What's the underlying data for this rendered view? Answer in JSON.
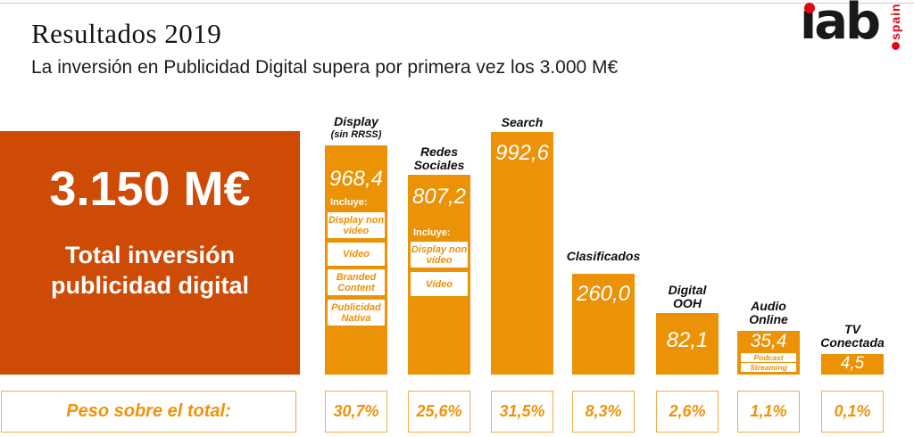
{
  "header": {
    "title": "Resultados 2019",
    "subtitle": "La inversión en Publicidad Digital supera por primera vez los 3.000 M€",
    "logo_text": "ıab",
    "logo_region": "spain"
  },
  "total_box": {
    "value": "3.150 M€",
    "label_line1": "Total inversión",
    "label_line2": "publicidad digital"
  },
  "bars": [
    {
      "label_lines": [
        "Display",
        "(sin RRSS)"
      ],
      "value_label": "968,4",
      "includes_title": "Incluye:",
      "includes": [
        "Display non vídeo",
        "Vídeo",
        "Branded Content",
        "Publicidad Nativa"
      ],
      "share": "30,7%"
    },
    {
      "label_lines": [
        "Redes",
        "Sociales"
      ],
      "value_label": "807,2",
      "includes_title": "Incluye:",
      "includes": [
        "Display non vídeo",
        "Vídeo"
      ],
      "share": "25,6%"
    },
    {
      "label_lines": [
        "Search"
      ],
      "value_label": "992,6",
      "share": "31,5%"
    },
    {
      "label_lines": [
        "Clasificados"
      ],
      "value_label": "260,0",
      "share": "8,3%"
    },
    {
      "label_lines": [
        "Digital",
        "OOH"
      ],
      "value_label": "82,1",
      "share": "2,6%"
    },
    {
      "label_lines": [
        "Audio",
        "Online"
      ],
      "value_label": "35,4",
      "includes": [
        "Podcast",
        "Streaming"
      ],
      "share": "1,1%"
    },
    {
      "label_lines": [
        "TV",
        "Conectada"
      ],
      "value_label": "4,5",
      "share": "0,1%"
    }
  ],
  "footer": {
    "peso_label": "Peso sobre el total:"
  },
  "chart_data": {
    "type": "bar",
    "title": "Resultados 2019",
    "subtitle": "La inversión en Publicidad Digital supera por primera vez los 3.000 M€",
    "unit": "M€",
    "total_label": "3.150 M€",
    "total_value": 3150,
    "categories": [
      "Display (sin RRSS)",
      "Redes Sociales",
      "Search",
      "Clasificados",
      "Digital OOH",
      "Audio Online",
      "TV Conectada"
    ],
    "values": [
      968.4,
      807.2,
      992.6,
      260.0,
      82.1,
      35.4,
      4.5
    ],
    "share_of_total_pct": [
      30.7,
      25.6,
      31.5,
      8.3,
      2.6,
      1.1,
      0.1
    ],
    "share_labels": [
      "30,7%",
      "25,6%",
      "31,5%",
      "8,3%",
      "2,6%",
      "1,1%",
      "0,1%"
    ],
    "includes": {
      "Display (sin RRSS)": [
        "Display non vídeo",
        "Vídeo",
        "Branded Content",
        "Publicidad Nativa"
      ],
      "Redes Sociales": [
        "Display non vídeo",
        "Vídeo"
      ],
      "Audio Online": [
        "Podcast",
        "Streaming"
      ]
    },
    "footer_row_label": "Peso sobre el total:",
    "legend_position": "none",
    "grid": false,
    "colors": {
      "bar_orange": "#eb9206",
      "dark_orange": "#ce4b06",
      "accent_text": "#f0920b",
      "border_light": "#f3ac4e",
      "logo_red": "#e30613"
    }
  }
}
